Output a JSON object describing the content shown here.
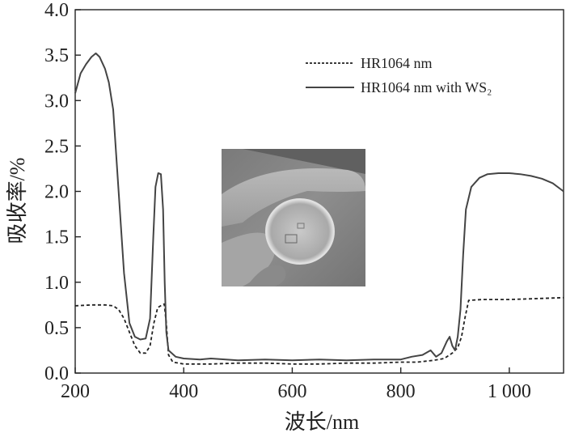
{
  "chart_data": {
    "type": "line",
    "xlabel": "波长/nm",
    "ylabel": "吸收率/%",
    "xlim": [
      200,
      1100
    ],
    "ylim": [
      0,
      4.0
    ],
    "x_ticks": [
      200,
      400,
      600,
      800,
      1000
    ],
    "x_tick_labels": [
      "200",
      "400",
      "600",
      "800",
      "1 000"
    ],
    "y_ticks": [
      0,
      0.5,
      1.0,
      1.5,
      2.0,
      2.5,
      3.0,
      3.5,
      4.0
    ],
    "y_tick_labels": [
      "0.0",
      "0.5",
      "1.0",
      "1.5",
      "2.0",
      "2.5",
      "3.0",
      "3.5",
      "4.0"
    ],
    "legend_position": "top-right",
    "grid": false,
    "series": [
      {
        "name": "HR1064 nm",
        "style": "dashed",
        "color": "#222222",
        "points": [
          [
            200,
            0.74
          ],
          [
            230,
            0.75
          ],
          [
            255,
            0.75
          ],
          [
            270,
            0.74
          ],
          [
            280,
            0.7
          ],
          [
            290,
            0.6
          ],
          [
            300,
            0.45
          ],
          [
            310,
            0.3
          ],
          [
            320,
            0.22
          ],
          [
            330,
            0.22
          ],
          [
            338,
            0.3
          ],
          [
            345,
            0.55
          ],
          [
            352,
            0.72
          ],
          [
            360,
            0.75
          ],
          [
            364,
            0.76
          ],
          [
            368,
            0.55
          ],
          [
            372,
            0.2
          ],
          [
            380,
            0.12
          ],
          [
            400,
            0.1
          ],
          [
            450,
            0.1
          ],
          [
            500,
            0.11
          ],
          [
            550,
            0.11
          ],
          [
            600,
            0.1
          ],
          [
            650,
            0.1
          ],
          [
            700,
            0.11
          ],
          [
            750,
            0.11
          ],
          [
            800,
            0.12
          ],
          [
            830,
            0.12
          ],
          [
            860,
            0.14
          ],
          [
            880,
            0.16
          ],
          [
            895,
            0.22
          ],
          [
            905,
            0.28
          ],
          [
            912,
            0.4
          ],
          [
            918,
            0.6
          ],
          [
            925,
            0.8
          ],
          [
            950,
            0.81
          ],
          [
            1000,
            0.81
          ],
          [
            1050,
            0.82
          ],
          [
            1100,
            0.83
          ]
        ]
      },
      {
        "name": "HR1064 nm with WS₂",
        "style": "solid",
        "color": "#444444",
        "points": [
          [
            200,
            3.08
          ],
          [
            210,
            3.3
          ],
          [
            220,
            3.4
          ],
          [
            230,
            3.48
          ],
          [
            238,
            3.52
          ],
          [
            245,
            3.48
          ],
          [
            255,
            3.35
          ],
          [
            262,
            3.2
          ],
          [
            270,
            2.9
          ],
          [
            280,
            2.0
          ],
          [
            290,
            1.1
          ],
          [
            300,
            0.55
          ],
          [
            310,
            0.4
          ],
          [
            320,
            0.37
          ],
          [
            330,
            0.38
          ],
          [
            338,
            0.6
          ],
          [
            344,
            1.5
          ],
          [
            348,
            2.05
          ],
          [
            353,
            2.2
          ],
          [
            358,
            2.19
          ],
          [
            362,
            1.8
          ],
          [
            365,
            1.0
          ],
          [
            368,
            0.45
          ],
          [
            372,
            0.25
          ],
          [
            385,
            0.18
          ],
          [
            400,
            0.16
          ],
          [
            430,
            0.15
          ],
          [
            450,
            0.16
          ],
          [
            500,
            0.14
          ],
          [
            550,
            0.15
          ],
          [
            600,
            0.14
          ],
          [
            650,
            0.15
          ],
          [
            700,
            0.14
          ],
          [
            750,
            0.15
          ],
          [
            800,
            0.15
          ],
          [
            820,
            0.18
          ],
          [
            840,
            0.2
          ],
          [
            855,
            0.25
          ],
          [
            865,
            0.18
          ],
          [
            875,
            0.22
          ],
          [
            885,
            0.35
          ],
          [
            890,
            0.4
          ],
          [
            895,
            0.3
          ],
          [
            900,
            0.25
          ],
          [
            905,
            0.4
          ],
          [
            910,
            0.7
          ],
          [
            915,
            1.3
          ],
          [
            920,
            1.8
          ],
          [
            930,
            2.05
          ],
          [
            945,
            2.15
          ],
          [
            960,
            2.19
          ],
          [
            980,
            2.2
          ],
          [
            1000,
            2.2
          ],
          [
            1020,
            2.19
          ],
          [
            1040,
            2.17
          ],
          [
            1060,
            2.14
          ],
          [
            1080,
            2.09
          ],
          [
            1100,
            2.0
          ]
        ]
      }
    ],
    "legend": [
      "HR1064 nm",
      "HR1064 nm with WS₂"
    ]
  },
  "inset": {
    "description_icon": "photo-of-coated-lens-held-in-fingers"
  }
}
